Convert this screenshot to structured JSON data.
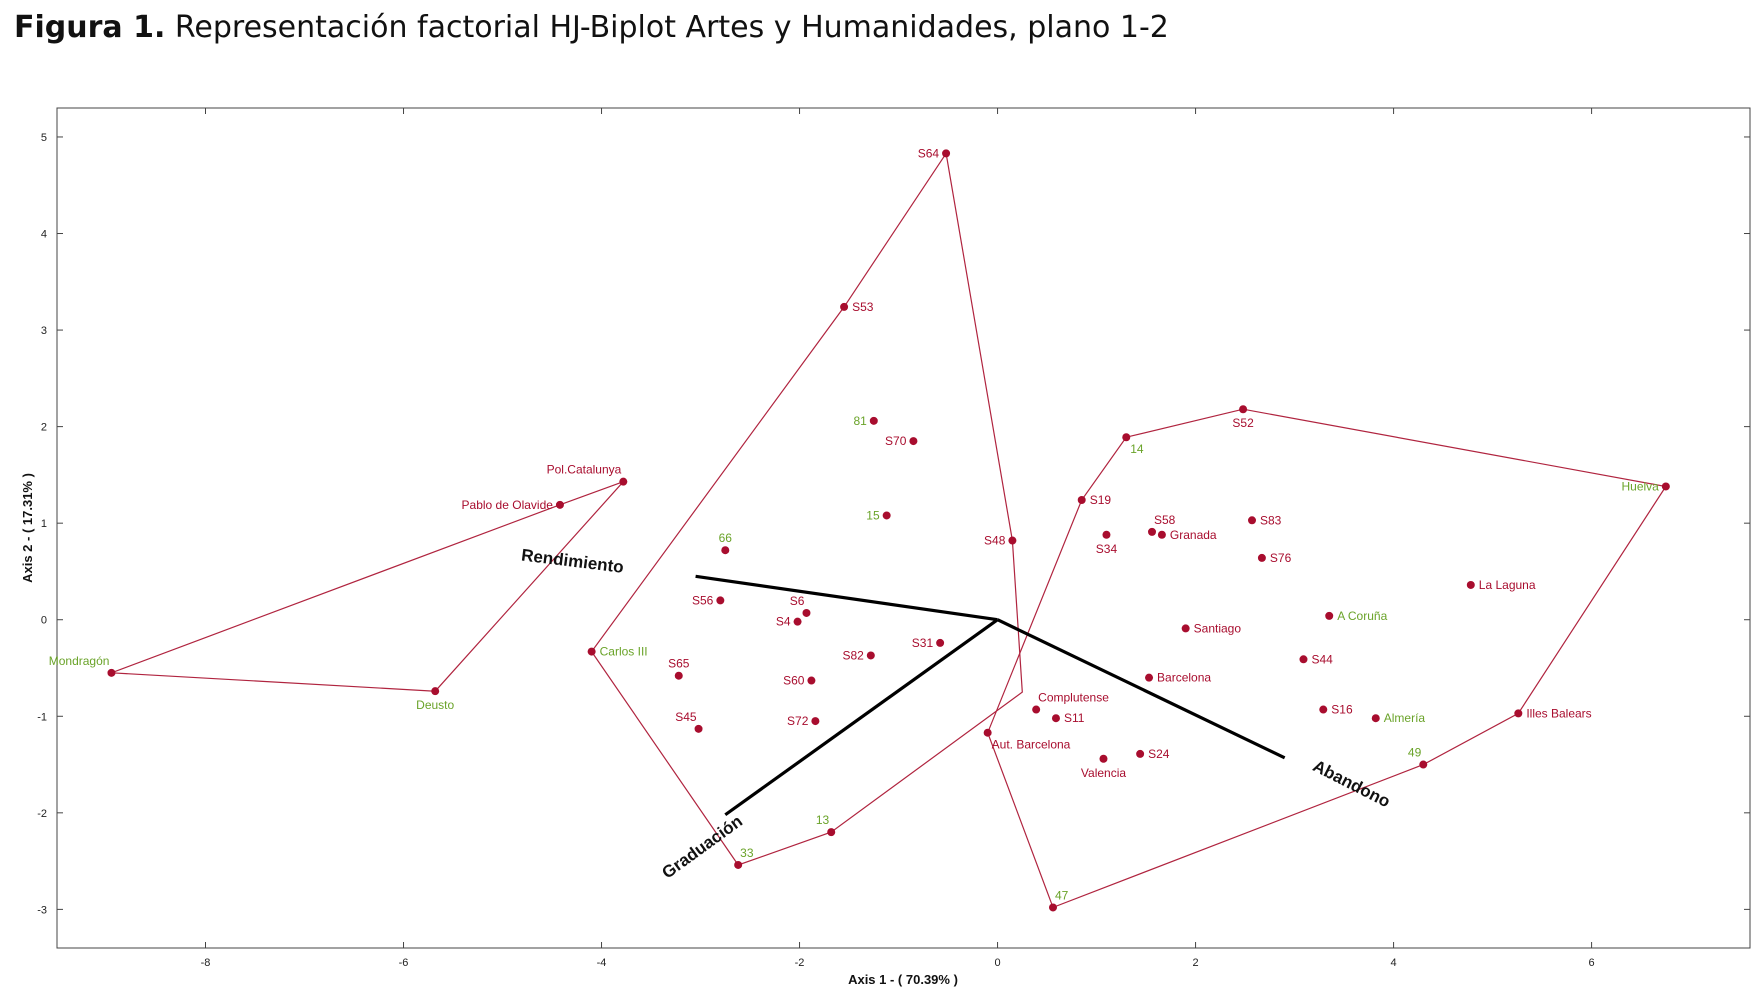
{
  "figure": {
    "caption_bold": "Figura 1.",
    "caption_text": " Representación factorial HJ-Biplot Artes y Humanidades, plano 1-2"
  },
  "colors": {
    "hull": "#b0243f",
    "point": "#a80d2e",
    "label_red": "#a80d2e",
    "label_green": "#6aa329",
    "vector": "#000000",
    "frame": "#444444"
  },
  "chart_data": {
    "type": "scatter",
    "subtype": "HJ-Biplot",
    "title": "",
    "xlabel": "Axis 1 - ( 70.39% )",
    "ylabel": "Axis 2 - ( 17.31% )",
    "xlim": [
      -9.5,
      7.6
    ],
    "ylim": [
      -3.4,
      5.3
    ],
    "xticks": [
      -8,
      -6,
      -4,
      -2,
      0,
      2,
      4,
      6
    ],
    "yticks": [
      -3,
      -2,
      -1,
      0,
      1,
      2,
      3,
      4,
      5
    ],
    "grid": false,
    "points": [
      {
        "label": "S64",
        "x": -0.52,
        "y": 4.83,
        "group": "red",
        "pos": "left"
      },
      {
        "label": "S53",
        "x": -1.55,
        "y": 3.24,
        "group": "red",
        "pos": "right"
      },
      {
        "label": "81",
        "x": -1.25,
        "y": 2.06,
        "group": "green",
        "pos": "left"
      },
      {
        "label": "S70",
        "x": -0.85,
        "y": 1.85,
        "group": "red",
        "pos": "left"
      },
      {
        "label": "15",
        "x": -1.12,
        "y": 1.08,
        "group": "green",
        "pos": "left"
      },
      {
        "label": "S48",
        "x": 0.15,
        "y": 0.82,
        "group": "red",
        "pos": "left"
      },
      {
        "label": "66",
        "x": -2.75,
        "y": 0.72,
        "group": "green",
        "pos": "above"
      },
      {
        "label": "S56",
        "x": -2.8,
        "y": 0.2,
        "group": "red",
        "pos": "left"
      },
      {
        "label": "S6",
        "x": -1.93,
        "y": 0.07,
        "group": "red",
        "pos": "aboveleft"
      },
      {
        "label": "S4",
        "x": -2.02,
        "y": -0.02,
        "group": "red",
        "pos": "left"
      },
      {
        "label": "S31",
        "x": -0.58,
        "y": -0.24,
        "group": "red",
        "pos": "left"
      },
      {
        "label": "S82",
        "x": -1.28,
        "y": -0.37,
        "group": "red",
        "pos": "left"
      },
      {
        "label": "S65",
        "x": -3.22,
        "y": -0.58,
        "group": "red",
        "pos": "above"
      },
      {
        "label": "S60",
        "x": -1.88,
        "y": -0.63,
        "group": "red",
        "pos": "left"
      },
      {
        "label": "S45",
        "x": -3.02,
        "y": -1.13,
        "group": "red",
        "pos": "aboveleft"
      },
      {
        "label": "S72",
        "x": -1.84,
        "y": -1.05,
        "group": "red",
        "pos": "left"
      },
      {
        "label": "13",
        "x": -1.68,
        "y": -2.2,
        "group": "green",
        "pos": "aboveleft"
      },
      {
        "label": "33",
        "x": -2.62,
        "y": -2.54,
        "group": "green",
        "pos": "aboveright"
      },
      {
        "label": "Carlos III",
        "x": -4.1,
        "y": -0.33,
        "group": "green",
        "pos": "right"
      },
      {
        "label": "Pol.Catalunya",
        "x": -3.78,
        "y": 1.43,
        "group": "red",
        "pos": "aboveleft"
      },
      {
        "label": "Pablo de Olavide",
        "x": -4.42,
        "y": 1.19,
        "group": "red",
        "pos": "left"
      },
      {
        "label": "Mondragón",
        "x": -8.95,
        "y": -0.55,
        "group": "green",
        "pos": "aboveleft"
      },
      {
        "label": "Deusto",
        "x": -5.68,
        "y": -0.74,
        "group": "green",
        "pos": "below"
      },
      {
        "label": "14",
        "x": 1.3,
        "y": 1.89,
        "group": "green",
        "pos": "belowright"
      },
      {
        "label": "S52",
        "x": 2.48,
        "y": 2.18,
        "group": "red",
        "pos": "below"
      },
      {
        "label": "Huelva",
        "x": 6.75,
        "y": 1.38,
        "group": "green",
        "pos": "left"
      },
      {
        "label": "S19",
        "x": 0.85,
        "y": 1.24,
        "group": "red",
        "pos": "right"
      },
      {
        "label": "S58",
        "x": 1.56,
        "y": 0.91,
        "group": "red",
        "pos": "aboveright"
      },
      {
        "label": "Granada",
        "x": 1.66,
        "y": 0.88,
        "group": "red",
        "pos": "right"
      },
      {
        "label": "S34",
        "x": 1.1,
        "y": 0.88,
        "group": "red",
        "pos": "below"
      },
      {
        "label": "S83",
        "x": 2.57,
        "y": 1.03,
        "group": "red",
        "pos": "right"
      },
      {
        "label": "S76",
        "x": 2.67,
        "y": 0.64,
        "group": "red",
        "pos": "right"
      },
      {
        "label": "La Laguna",
        "x": 4.78,
        "y": 0.36,
        "group": "red",
        "pos": "right"
      },
      {
        "label": "A Coruña",
        "x": 3.35,
        "y": 0.04,
        "group": "green",
        "pos": "right"
      },
      {
        "label": "Santiago",
        "x": 1.9,
        "y": -0.09,
        "group": "red",
        "pos": "right"
      },
      {
        "label": "S44",
        "x": 3.09,
        "y": -0.41,
        "group": "red",
        "pos": "right"
      },
      {
        "label": "Barcelona",
        "x": 1.53,
        "y": -0.6,
        "group": "red",
        "pos": "right"
      },
      {
        "label": "S16",
        "x": 3.29,
        "y": -0.93,
        "group": "red",
        "pos": "right"
      },
      {
        "label": "Almería",
        "x": 3.82,
        "y": -1.02,
        "group": "green",
        "pos": "right"
      },
      {
        "label": "Illes Balears",
        "x": 5.26,
        "y": -0.97,
        "group": "red",
        "pos": "right"
      },
      {
        "label": "Complutense",
        "x": 0.39,
        "y": -0.93,
        "group": "red",
        "pos": "aboveright"
      },
      {
        "label": "S11",
        "x": 0.59,
        "y": -1.02,
        "group": "red",
        "pos": "right"
      },
      {
        "label": "Aut. Barcelona",
        "x": -0.1,
        "y": -1.17,
        "group": "red",
        "pos": "belowright"
      },
      {
        "label": "S24",
        "x": 1.44,
        "y": -1.39,
        "group": "red",
        "pos": "right"
      },
      {
        "label": "Valencia",
        "x": 1.07,
        "y": -1.44,
        "group": "red",
        "pos": "below"
      },
      {
        "label": "49",
        "x": 4.3,
        "y": -1.5,
        "group": "green",
        "pos": "aboveleft"
      },
      {
        "label": "47",
        "x": 0.56,
        "y": -2.98,
        "group": "green",
        "pos": "aboveright"
      }
    ],
    "hulls": [
      {
        "name": "convex-hull-1",
        "vertices": [
          [
            -8.95,
            -0.55
          ],
          [
            -4.42,
            1.19
          ],
          [
            -3.78,
            1.43
          ],
          [
            -5.68,
            -0.74
          ]
        ]
      },
      {
        "name": "convex-hull-2",
        "vertices": [
          [
            -0.52,
            4.83
          ],
          [
            -1.55,
            3.24
          ],
          [
            -4.1,
            -0.33
          ],
          [
            -2.62,
            -2.54
          ],
          [
            -1.68,
            -2.2
          ],
          [
            0.25,
            -0.75
          ],
          [
            0.15,
            0.82
          ]
        ]
      },
      {
        "name": "convex-hull-3",
        "vertices": [
          [
            1.3,
            1.89
          ],
          [
            2.48,
            2.18
          ],
          [
            6.75,
            1.38
          ],
          [
            5.26,
            -0.97
          ],
          [
            4.3,
            -1.5
          ],
          [
            0.56,
            -2.98
          ],
          [
            -0.1,
            -1.17
          ],
          [
            0.85,
            1.24
          ]
        ]
      }
    ],
    "vectors": [
      {
        "label": "Rendimiento",
        "x": -3.05,
        "y": 0.45,
        "label_x": -4.3,
        "label_y": 0.55,
        "rotate": 7
      },
      {
        "label": "Graduación",
        "x": -2.75,
        "y": -2.02,
        "label_x": -2.95,
        "label_y": -2.4,
        "rotate": -36
      },
      {
        "label": "Abandono",
        "x": 2.9,
        "y": -1.43,
        "label_x": 3.55,
        "label_y": -1.75,
        "rotate": 27
      }
    ]
  }
}
